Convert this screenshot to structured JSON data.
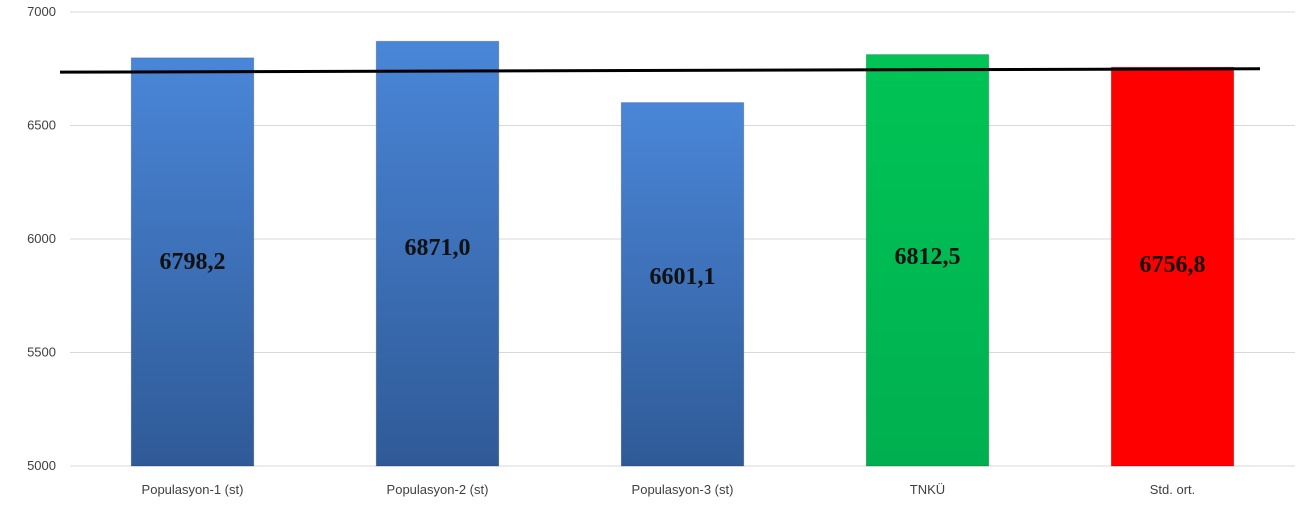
{
  "chart_data": {
    "type": "bar",
    "title": "",
    "xlabel": "",
    "ylabel": "",
    "ylim": [
      5000,
      7000
    ],
    "yticks": [
      5000,
      5500,
      6000,
      6500,
      7000
    ],
    "grid": true,
    "legend": "none",
    "categories": [
      "Populasyon-1 (st)",
      "Populasyon-2 (st)",
      "Populasyon-3 (st)",
      "TNKÜ",
      "Std. ort."
    ],
    "values": [
      6798.2,
      6871.0,
      6601.1,
      6812.5,
      6756.8
    ],
    "data_labels": [
      "6798,2",
      "6871,0",
      "6601,1",
      "6812,5",
      "6756,8"
    ],
    "bar_colors": [
      "#4472c4",
      "#4472c4",
      "#4472c4",
      "#00b050",
      "#ff0000"
    ],
    "reference_line": {
      "start": 6735,
      "end": 6750,
      "color": "#000000"
    }
  }
}
